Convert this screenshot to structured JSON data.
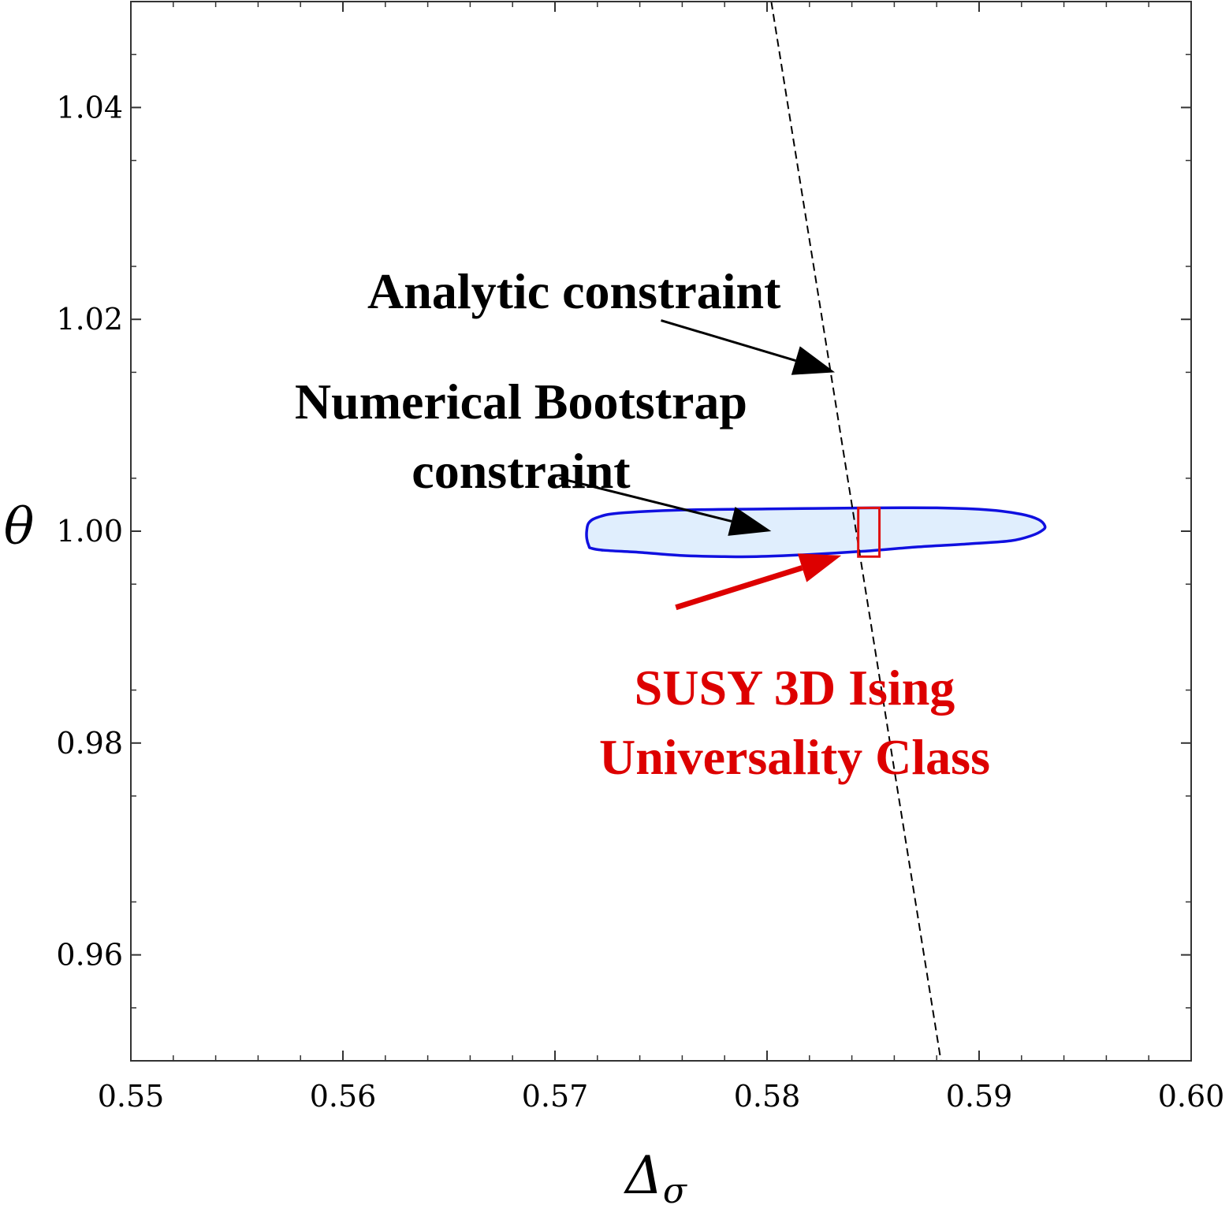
{
  "chart_data": {
    "type": "scatter",
    "title": "",
    "xlabel": "Δ",
    "xlabel_subscript": "σ",
    "ylabel": "θ",
    "xlim": [
      0.55,
      0.6
    ],
    "ylim": [
      0.95,
      1.05
    ],
    "x_ticks": [
      "0.55",
      "0.56",
      "0.57",
      "0.58",
      "0.59",
      "0.60"
    ],
    "y_ticks": [
      "0.96",
      "0.98",
      "1.00",
      "1.02",
      "1.04"
    ],
    "x_tick_values": [
      0.55,
      0.56,
      0.57,
      0.58,
      0.59,
      0.6
    ],
    "y_tick_values": [
      0.96,
      0.98,
      1.0,
      1.02,
      1.04
    ],
    "grid": false,
    "series": [
      {
        "kind": "dashed-line",
        "color": "#000000",
        "points": [
          [
            0.5802,
            1.05
          ],
          [
            0.5882,
            0.95
          ]
        ]
      },
      {
        "kind": "filled-region",
        "stroke": "#1010e0",
        "fill": "#e0eefd",
        "points": [
          [
            0.5716,
            0.9986
          ],
          [
            0.5715,
            0.9993
          ],
          [
            0.5715,
            1.0001
          ],
          [
            0.5716,
            1.0008
          ],
          [
            0.572,
            1.0013
          ],
          [
            0.573,
            1.0017
          ],
          [
            0.576,
            1.002
          ],
          [
            0.58,
            1.0021
          ],
          [
            0.585,
            1.0022
          ],
          [
            0.588,
            1.0022
          ],
          [
            0.5905,
            1.002
          ],
          [
            0.592,
            1.0016
          ],
          [
            0.5928,
            1.0011
          ],
          [
            0.5931,
            1.0005
          ],
          [
            0.593,
            1.0001
          ],
          [
            0.5925,
            0.9996
          ],
          [
            0.5915,
            0.9991
          ],
          [
            0.5895,
            0.9988
          ],
          [
            0.587,
            0.9985
          ],
          [
            0.5845,
            0.9981
          ],
          [
            0.582,
            0.9978
          ],
          [
            0.5795,
            0.9976
          ],
          [
            0.578,
            0.9976
          ],
          [
            0.576,
            0.9977
          ],
          [
            0.574,
            0.998
          ],
          [
            0.5723,
            0.9982
          ],
          [
            0.5717,
            0.9984
          ]
        ]
      },
      {
        "kind": "rectangle",
        "stroke": "#e01010",
        "x": [
          0.5843,
          0.5853
        ],
        "y": [
          0.9976,
          1.0022
        ]
      }
    ],
    "annotations": [
      {
        "id": "analytic",
        "lines": [
          "Analytic constraint"
        ],
        "color": "#000000",
        "text_center": [
          0.5709,
          1.0227
        ],
        "arrow_from": [
          0.575,
          1.0199
        ],
        "arrow_to": [
          0.5832,
          1.015
        ]
      },
      {
        "id": "numerical",
        "lines": [
          "Numerical Bootstrap",
          "constraint"
        ],
        "color": "#000000",
        "text_center": [
          0.5684,
          1.009
        ],
        "arrow_from": [
          0.5702,
          1.005
        ],
        "arrow_to": [
          0.5802,
          1.0
        ]
      },
      {
        "id": "susy",
        "lines": [
          "SUSY 3D Ising",
          "Universality Class"
        ],
        "color": "#dd0000",
        "text_center": [
          0.5813,
          0.982
        ],
        "arrow_from": [
          0.5757,
          0.9928
        ],
        "arrow_to": [
          0.5835,
          0.9977
        ]
      }
    ]
  }
}
